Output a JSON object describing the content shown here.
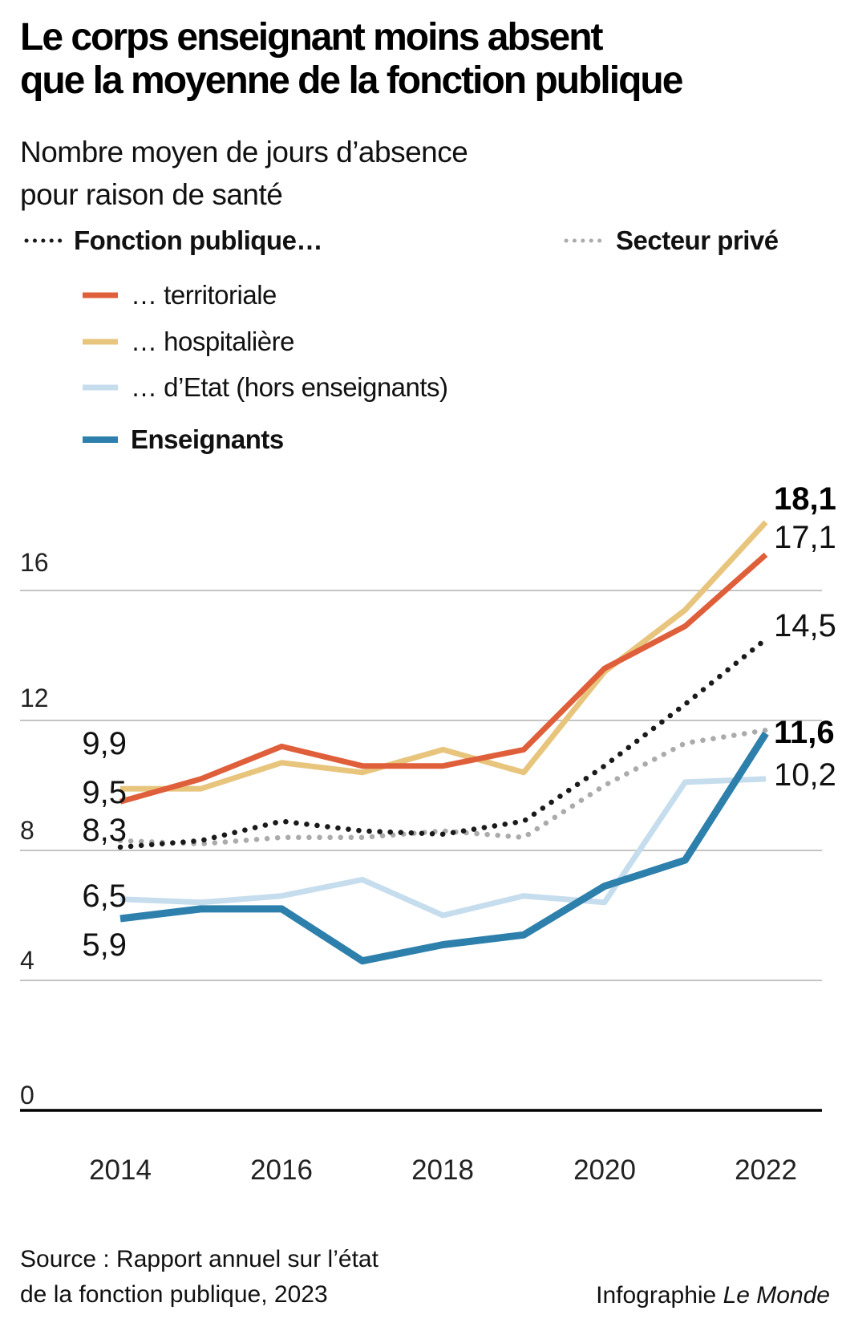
{
  "title": {
    "line1": "Le corps enseignant moins absent",
    "line2": "que la moyenne de la fonction publique"
  },
  "subtitle": {
    "line1": "Nombre moyen de jours d’absence",
    "line2": "pour raison de santé"
  },
  "legend": {
    "fonction_publique": "Fonction publique…",
    "secteur_prive": "Secteur privé",
    "territoriale": "… territoriale",
    "hospitaliere": "… hospitalière",
    "etat": "… d’Etat (hors enseignants)",
    "enseignants": "Enseignants"
  },
  "chart_data": {
    "type": "line",
    "x": [
      2014,
      2015,
      2016,
      2017,
      2018,
      2019,
      2020,
      2021,
      2022
    ],
    "x_tick_labels": [
      "2014",
      "2016",
      "2018",
      "2020",
      "2022"
    ],
    "y_tick_labels": [
      "16",
      "12",
      "8",
      "4",
      "0"
    ],
    "gridline_values": [
      16,
      12,
      8,
      4,
      0
    ],
    "ylim": [
      0,
      19
    ],
    "grid": true,
    "legend_position": "top-left",
    "series": [
      {
        "key": "secteur_prive",
        "name": "Secteur privé",
        "style": "dotted",
        "color": "#ABABAB",
        "width": 6.5,
        "values": [
          8.3,
          8.2,
          8.4,
          8.4,
          8.6,
          8.4,
          10.0,
          11.3,
          11.7
        ]
      },
      {
        "key": "fonction_publique",
        "name": "Fonction publique…",
        "style": "dotted",
        "color": "#1A1A1A",
        "width": 6.5,
        "values": [
          8.1,
          8.3,
          8.9,
          8.6,
          8.5,
          8.9,
          10.6,
          12.5,
          14.5
        ]
      },
      {
        "key": "hospitaliere",
        "name": "… hospitalière",
        "style": "solid",
        "color": "#E8C57D",
        "width": 7,
        "values": [
          9.9,
          9.9,
          10.7,
          10.4,
          11.1,
          10.4,
          13.5,
          15.4,
          18.1
        ]
      },
      {
        "key": "territoriale",
        "name": "… territoriale",
        "style": "solid",
        "color": "#E05F3B",
        "width": 7,
        "values": [
          9.5,
          10.2,
          11.2,
          10.6,
          10.6,
          11.1,
          13.6,
          14.9,
          17.1
        ]
      },
      {
        "key": "etat",
        "name": "… d’Etat (hors enseignants)",
        "style": "solid",
        "color": "#C6DDEE",
        "width": 7,
        "values": [
          6.5,
          6.4,
          6.6,
          7.1,
          6.0,
          6.6,
          6.4,
          10.1,
          10.2
        ]
      },
      {
        "key": "enseignants",
        "name": "Enseignants",
        "style": "solid",
        "color": "#2E80AC",
        "width": 9,
        "values": [
          5.9,
          6.2,
          6.2,
          4.6,
          5.1,
          5.4,
          6.9,
          7.7,
          11.6
        ]
      }
    ],
    "start_labels": [
      {
        "text": "9,9",
        "series": "hospitaliere"
      },
      {
        "text": "9,5",
        "series": "territoriale"
      },
      {
        "text": "8,3",
        "series": "secteur_prive"
      },
      {
        "text": "6,5",
        "series": "etat"
      },
      {
        "text": "5,9",
        "series": "enseignants"
      }
    ],
    "end_labels": [
      {
        "text": "18,1",
        "series": "hospitaliere",
        "bold": true
      },
      {
        "text": "17,1",
        "series": "territoriale",
        "bold": false
      },
      {
        "text": "14,5",
        "series": "fonction_publique",
        "bold": false
      },
      {
        "text": "11,6",
        "series": "enseignants",
        "bold": true
      },
      {
        "text": "10,2",
        "series": "etat",
        "bold": false
      }
    ]
  },
  "source": {
    "line1": "Source : Rapport annuel sur l’état",
    "line2": "de la fonction publique, 2023"
  },
  "credit": {
    "prefix": "Infographie ",
    "brand": "Le Monde"
  }
}
